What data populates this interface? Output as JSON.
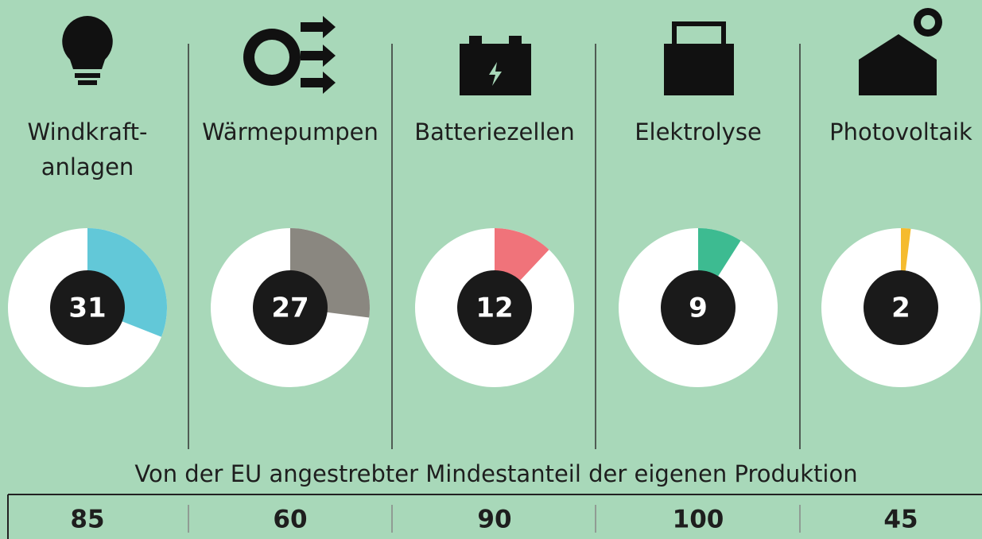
{
  "chart_data": [
    {
      "type": "pie",
      "title_lines": [
        "Windkraft-",
        "anlagen"
      ],
      "values": [
        31
      ],
      "color": "#62c8d8"
    },
    {
      "type": "pie",
      "title_lines": [
        "Wärmepumpen"
      ],
      "values": [
        27
      ],
      "color": "#8a8780"
    },
    {
      "type": "pie",
      "title_lines": [
        "Batteriezellen"
      ],
      "values": [
        12
      ],
      "color": "#f0737a"
    },
    {
      "type": "pie",
      "title_lines": [
        "Elektrolyse"
      ],
      "values": [
        9
      ],
      "color": "#3dbb91"
    },
    {
      "type": "pie",
      "title_lines": [
        "Photovoltaik"
      ],
      "values": [
        2
      ],
      "color": "#f5bb2e"
    }
  ],
  "target": {
    "title": "Von der EU angestrebter Mindestanteil der eigenen Produktion",
    "values": [
      85,
      60,
      90,
      100,
      45
    ]
  }
}
